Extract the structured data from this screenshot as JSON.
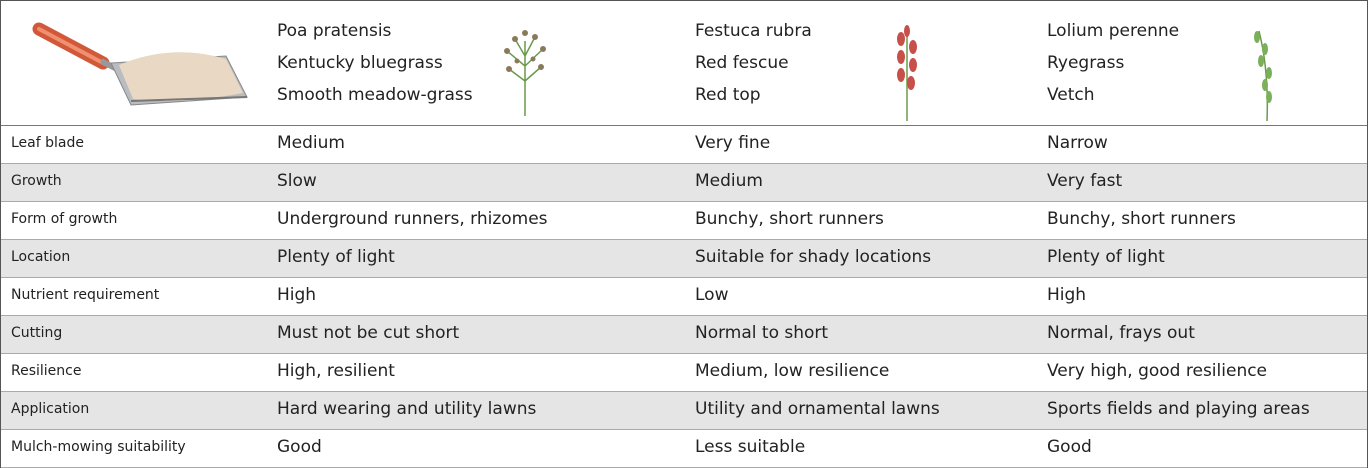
{
  "header": {
    "species": [
      {
        "lines": [
          "Poa pratensis",
          "Kentucky bluegrass",
          "Smooth meadow-grass"
        ]
      },
      {
        "lines": [
          "Festuca rubra",
          "Red fescue",
          "Red top"
        ]
      },
      {
        "lines": [
          "Lolium perenne",
          "Ryegrass",
          "Vetch"
        ]
      }
    ]
  },
  "table": {
    "rows": [
      [
        "Leaf blade",
        "Medium",
        "Very fine",
        "Narrow"
      ],
      [
        "Growth",
        "Slow",
        "Medium",
        "Very fast"
      ],
      [
        "Form of growth",
        "Underground runners, rhizomes",
        "Bunchy, short runners",
        "Bunchy, short runners"
      ],
      [
        "Location",
        "Plenty of light",
        "Suitable for shady locations",
        "Plenty of light"
      ],
      [
        "Nutrient requirement",
        "High",
        "Low",
        "High"
      ],
      [
        "Cutting",
        "Must not be cut short",
        "Normal to short",
        "Normal, frays out"
      ],
      [
        "Resilience",
        "High, resilient",
        "Medium, low resilience",
        "Very high, good resilience"
      ],
      [
        "Application",
        "Hard wearing and utility lawns",
        "Utility and ornamental lawns",
        "Sports fields and playing areas"
      ],
      [
        "Mulch-mowing suitability",
        "Good",
        "Less suitable",
        "Good"
      ]
    ]
  }
}
